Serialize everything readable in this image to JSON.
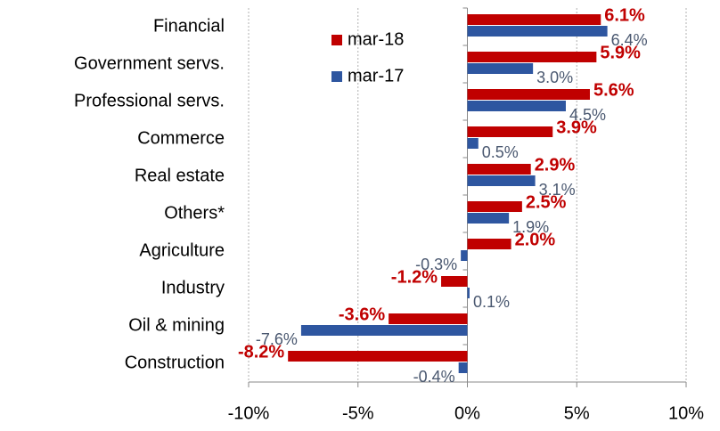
{
  "chart_data": {
    "type": "barh",
    "categories": [
      "Financial",
      "Government servs.",
      "Professional servs.",
      "Commerce",
      "Real estate",
      "Others*",
      "Agriculture",
      "Industry",
      "Oil & mining",
      "Construction"
    ],
    "series": [
      {
        "name": "mar-18",
        "color": "#c00000",
        "values": [
          6.1,
          5.9,
          5.6,
          3.9,
          2.9,
          2.5,
          2.0,
          -1.2,
          -3.6,
          -8.2
        ],
        "value_labels": [
          "6.1%",
          "5.9%",
          "5.6%",
          "3.9%",
          "2.9%",
          "2.5%",
          "2.0%",
          "-1.2%",
          "-3.6%",
          "-8.2%"
        ]
      },
      {
        "name": "mar-17",
        "color": "#2e56a0",
        "values": [
          6.4,
          3.0,
          4.5,
          0.5,
          3.1,
          1.9,
          -0.3,
          0.1,
          -7.6,
          -0.4
        ],
        "value_labels": [
          "6.4%",
          "3.0%",
          "4.5%",
          "0.5%",
          "3.1%",
          "1.9%",
          "-0.3%",
          "0.1%",
          "-7.6%",
          "-0.4%"
        ]
      }
    ],
    "xlim": [
      -10,
      10
    ],
    "xticks": [
      {
        "value": -10,
        "label": "-10%"
      },
      {
        "value": -5,
        "label": "-5%"
      },
      {
        "value": 0,
        "label": "0%"
      },
      {
        "value": 5,
        "label": "5%"
      },
      {
        "value": 10,
        "label": "10%"
      }
    ],
    "grid": true,
    "legend": "upper-left"
  }
}
